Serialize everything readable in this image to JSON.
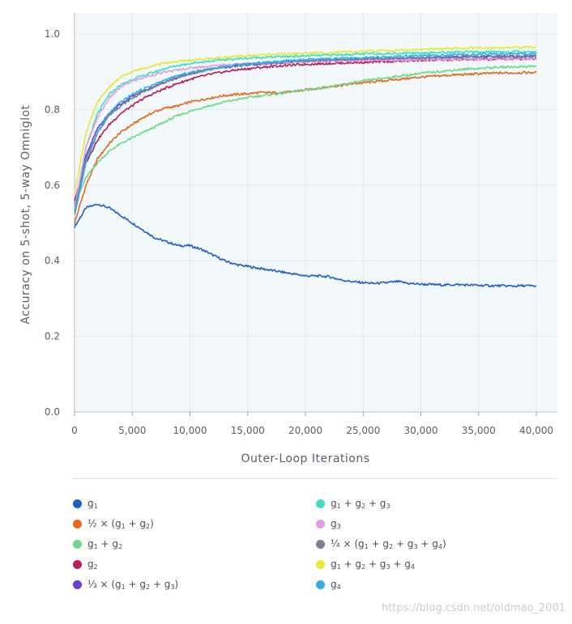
{
  "chart_data": {
    "type": "line",
    "title": "",
    "xlabel": "Outer-Loop Iterations",
    "ylabel": "Accuracy on 5-shot, 5-way Omniglot",
    "xlim": [
      0,
      40000
    ],
    "ylim": [
      0.0,
      1.0
    ],
    "xticks": [
      0,
      5000,
      10000,
      15000,
      20000,
      25000,
      30000,
      35000,
      40000
    ],
    "xtick_labels": [
      "0",
      "5,000",
      "10,000",
      "15,000",
      "20,000",
      "25,000",
      "30,000",
      "35,000",
      "40,000"
    ],
    "yticks": [
      0.0,
      0.2,
      0.4,
      0.6,
      0.8,
      1.0
    ],
    "ytick_labels": [
      "0.0",
      "0.2",
      "0.4",
      "0.6",
      "0.8",
      "1.0"
    ],
    "grid": true,
    "legend_position": "bottom",
    "x": [
      0,
      1000,
      2000,
      3000,
      4000,
      5000,
      6000,
      7000,
      8000,
      9000,
      10000,
      11000,
      12000,
      13000,
      14000,
      15000,
      16000,
      17000,
      18000,
      19000,
      20000,
      21000,
      22000,
      23000,
      24000,
      25000,
      26000,
      27000,
      28000,
      29000,
      30000,
      31000,
      32000,
      33000,
      34000,
      35000,
      36000,
      37000,
      38000,
      39000,
      40000
    ],
    "series": [
      {
        "label_parts": [
          "g",
          "1",
          ""
        ],
        "color": "#1f5fc9",
        "values": [
          0.49,
          0.54,
          0.55,
          0.54,
          0.52,
          0.5,
          0.48,
          0.46,
          0.45,
          0.44,
          0.44,
          0.43,
          0.415,
          0.4,
          0.39,
          0.385,
          0.38,
          0.375,
          0.37,
          0.365,
          0.36,
          0.36,
          0.358,
          0.35,
          0.345,
          0.342,
          0.34,
          0.342,
          0.345,
          0.34,
          0.338,
          0.337,
          0.336,
          0.337,
          0.336,
          0.335,
          0.334,
          0.334,
          0.333,
          0.334,
          0.333
        ]
      },
      {
        "label_parts": [
          "½ × (g",
          "1",
          " + g",
          "2",
          ")"
        ],
        "color": "#e0691f",
        "values": [
          0.5,
          0.6,
          0.67,
          0.71,
          0.74,
          0.76,
          0.78,
          0.795,
          0.805,
          0.81,
          0.82,
          0.826,
          0.832,
          0.837,
          0.84,
          0.842,
          0.845,
          0.845,
          0.845,
          0.848,
          0.852,
          0.856,
          0.86,
          0.864,
          0.868,
          0.871,
          0.874,
          0.877,
          0.88,
          0.883,
          0.886,
          0.888,
          0.89,
          0.892,
          0.893,
          0.895,
          0.896,
          0.897,
          0.897,
          0.898,
          0.898
        ]
      },
      {
        "label_parts": [
          "g",
          "1",
          " + g",
          "2",
          ""
        ],
        "color": "#6fd98a",
        "values": [
          0.55,
          0.62,
          0.66,
          0.69,
          0.71,
          0.725,
          0.74,
          0.755,
          0.77,
          0.785,
          0.795,
          0.805,
          0.812,
          0.82,
          0.826,
          0.832,
          0.836,
          0.84,
          0.843,
          0.848,
          0.852,
          0.856,
          0.86,
          0.865,
          0.87,
          0.875,
          0.88,
          0.884,
          0.888,
          0.892,
          0.896,
          0.899,
          0.902,
          0.905,
          0.907,
          0.909,
          0.911,
          0.912,
          0.913,
          0.914,
          0.915
        ]
      },
      {
        "label_parts": [
          "g",
          "2",
          ""
        ],
        "color": "#b51f5e",
        "values": [
          0.56,
          0.66,
          0.72,
          0.76,
          0.79,
          0.81,
          0.83,
          0.845,
          0.858,
          0.87,
          0.88,
          0.888,
          0.895,
          0.9,
          0.905,
          0.908,
          0.911,
          0.914,
          0.916,
          0.918,
          0.92,
          0.921,
          0.922,
          0.923,
          0.924,
          0.925,
          0.926,
          0.927,
          0.928,
          0.929,
          0.93,
          0.931,
          0.931,
          0.932,
          0.932,
          0.933,
          0.933,
          0.934,
          0.934,
          0.934,
          0.935
        ]
      },
      {
        "label_parts": [
          "⅓ × (g",
          "1",
          " + g",
          "2",
          " + g",
          "3",
          ")"
        ],
        "color": "#6a3fd9",
        "values": [
          0.55,
          0.68,
          0.75,
          0.79,
          0.815,
          0.835,
          0.85,
          0.862,
          0.875,
          0.885,
          0.895,
          0.902,
          0.908,
          0.912,
          0.915,
          0.918,
          0.92,
          0.922,
          0.924,
          0.926,
          0.928,
          0.929,
          0.93,
          0.931,
          0.932,
          0.933,
          0.934,
          0.935,
          0.936,
          0.937,
          0.938,
          0.938,
          0.939,
          0.939,
          0.94,
          0.94,
          0.941,
          0.941,
          0.941,
          0.942,
          0.942
        ]
      },
      {
        "label_parts": [
          "g",
          "1",
          " + g",
          "2",
          " + g",
          "3",
          ""
        ],
        "color": "#3de0c4",
        "values": [
          0.54,
          0.7,
          0.79,
          0.84,
          0.865,
          0.88,
          0.89,
          0.9,
          0.91,
          0.917,
          0.922,
          0.926,
          0.929,
          0.932,
          0.934,
          0.936,
          0.938,
          0.939,
          0.94,
          0.941,
          0.942,
          0.943,
          0.944,
          0.945,
          0.946,
          0.947,
          0.948,
          0.948,
          0.949,
          0.95,
          0.95,
          0.951,
          0.951,
          0.952,
          0.952,
          0.952,
          0.953,
          0.953,
          0.953,
          0.953,
          0.953
        ]
      },
      {
        "label_parts": [
          "g",
          "3",
          ""
        ],
        "color": "#e59be3",
        "values": [
          0.54,
          0.7,
          0.78,
          0.83,
          0.86,
          0.875,
          0.885,
          0.893,
          0.9,
          0.905,
          0.91,
          0.913,
          0.916,
          0.918,
          0.92,
          0.922,
          0.923,
          0.924,
          0.925,
          0.926,
          0.927,
          0.928,
          0.928,
          0.929,
          0.929,
          0.93,
          0.93,
          0.931,
          0.931,
          0.931,
          0.932,
          0.932,
          0.932,
          0.933,
          0.933,
          0.933,
          0.933,
          0.934,
          0.934,
          0.934,
          0.934
        ]
      },
      {
        "label_parts": [
          "¼ × (g",
          "1",
          " + g",
          "2",
          " + g",
          "3",
          " + g",
          "4",
          ")"
        ],
        "color": "#7c7f8f",
        "values": [
          0.53,
          0.67,
          0.74,
          0.785,
          0.81,
          0.83,
          0.848,
          0.862,
          0.875,
          0.886,
          0.895,
          0.902,
          0.908,
          0.913,
          0.917,
          0.92,
          0.922,
          0.924,
          0.926,
          0.928,
          0.929,
          0.93,
          0.931,
          0.932,
          0.933,
          0.934,
          0.934,
          0.935,
          0.935,
          0.936,
          0.936,
          0.937,
          0.937,
          0.938,
          0.938,
          0.939,
          0.939,
          0.94,
          0.94,
          0.94,
          0.94
        ]
      },
      {
        "label_parts": [
          "g",
          "1",
          " + g",
          "2",
          " + g",
          "3",
          " + g",
          "4",
          ""
        ],
        "color": "#e8e83a",
        "values": [
          0.58,
          0.74,
          0.82,
          0.86,
          0.885,
          0.9,
          0.91,
          0.918,
          0.924,
          0.928,
          0.93,
          0.933,
          0.936,
          0.938,
          0.94,
          0.942,
          0.944,
          0.946,
          0.947,
          0.948,
          0.949,
          0.95,
          0.951,
          0.952,
          0.953,
          0.954,
          0.955,
          0.956,
          0.957,
          0.958,
          0.959,
          0.96,
          0.961,
          0.962,
          0.962,
          0.963,
          0.963,
          0.964,
          0.964,
          0.965,
          0.965
        ]
      },
      {
        "label_parts": [
          "g",
          "4",
          ""
        ],
        "color": "#34aee8",
        "values": [
          0.52,
          0.66,
          0.74,
          0.79,
          0.82,
          0.84,
          0.855,
          0.868,
          0.88,
          0.89,
          0.898,
          0.904,
          0.909,
          0.914,
          0.918,
          0.921,
          0.924,
          0.926,
          0.928,
          0.93,
          0.932,
          0.933,
          0.934,
          0.935,
          0.936,
          0.937,
          0.938,
          0.939,
          0.94,
          0.941,
          0.942,
          0.943,
          0.944,
          0.945,
          0.946,
          0.946,
          0.947,
          0.947,
          0.948,
          0.948,
          0.948
        ]
      }
    ]
  },
  "watermark": "https://blog.csdn.net/oldmao_2001"
}
